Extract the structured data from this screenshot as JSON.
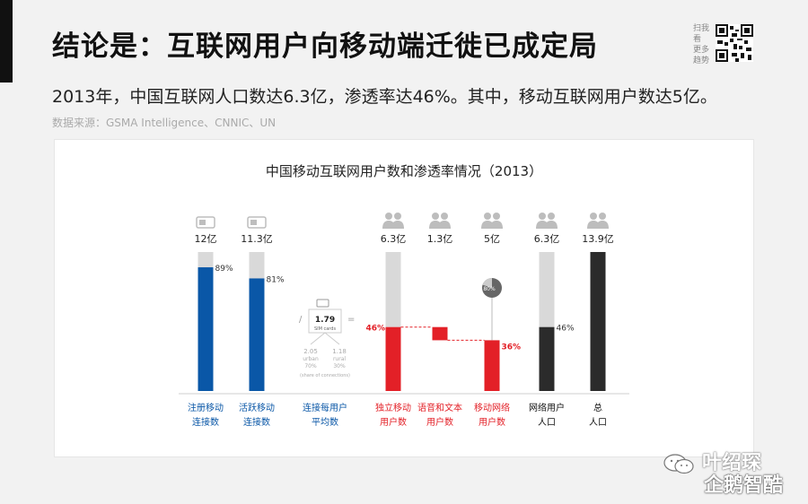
{
  "page": {
    "title": "结论是：互联网用户向移动端迁徙已成定局",
    "subtitle": "2013年，中国互联网人口数达6.3亿，渗透率达46%。其中，移动互联网用户数达5亿。",
    "source": "数据来源：GSMA Intelligence、CNNIC、UN",
    "qr_caption": "扫我 看 更多 趋势"
  },
  "watermark": {
    "author": "叶绍琛",
    "brand": "企鹅智酷"
  },
  "colors": {
    "blue": "#0a57a7",
    "red": "#e32027",
    "dark": "#2b2b2b",
    "grey": "#d9d9d9",
    "icon": "#bdbdbd"
  },
  "chart_data": {
    "type": "bar",
    "title": "中国移动互联网用户数和渗透率情况（2013）",
    "bars": [
      {
        "id": "reg",
        "label": [
          "注册移动",
          "连接数"
        ],
        "label_color": "#0a57a7",
        "value_text": "12亿",
        "value": 12,
        "fill_pct": 89,
        "pct_text": "89%",
        "color": "#0a57a7",
        "icon": "sim-card-icon"
      },
      {
        "id": "act",
        "label": [
          "活跃移动",
          "连接数"
        ],
        "label_color": "#0a57a7",
        "value_text": "11.3亿",
        "value": 11.3,
        "fill_pct": 81,
        "pct_text": "81%",
        "color": "#0a57a7",
        "icon": "sim-card-icon"
      },
      {
        "id": "uniq",
        "label": [
          "独立移动",
          "用户数"
        ],
        "label_color": "#e32027",
        "value_text": "6.3亿",
        "value": 6.3,
        "fill_pct": 46,
        "pct_text": "46%",
        "color": "#e32027",
        "icon": "users-icon"
      },
      {
        "id": "voice",
        "label": [
          "语音和文本",
          "用户数"
        ],
        "label_color": "#e32027",
        "value_text": "1.3亿",
        "value": 1.3,
        "fill_pct": 10,
        "pct_text": "",
        "color": "#e32027",
        "icon": "users-icon"
      },
      {
        "id": "mobnet",
        "label": [
          "移动网络",
          "用户数"
        ],
        "label_color": "#e32027",
        "value_text": "5亿",
        "value": 5,
        "fill_pct": 36,
        "pct_text": "36%",
        "color": "#e32027",
        "icon": "users-icon",
        "pie_text": "80%"
      },
      {
        "id": "net",
        "label": [
          "网络用户",
          "人口"
        ],
        "label_color": "#111111",
        "value_text": "6.3亿",
        "value": 6.3,
        "fill_pct": 46,
        "pct_text": "46%",
        "color": "#2b2b2b",
        "icon": "users-icon"
      },
      {
        "id": "pop",
        "label": [
          "总",
          "人口"
        ],
        "label_color": "#111111",
        "value_text": "13.9亿",
        "value": 13.9,
        "fill_pct": 100,
        "pct_text": "",
        "color": "#2b2b2b",
        "icon": "users-icon"
      }
    ],
    "sim_ratio": {
      "label": [
        "连接每用户",
        "平均数"
      ],
      "value": "1.79",
      "unit": "SIM cards",
      "urban": "2.05",
      "urban_label": "urban",
      "urban_pct": "70%",
      "rural": "1.18",
      "rural_label": "rural",
      "rural_pct": "30%",
      "note": "(share of connections)",
      "ops": [
        "/",
        "="
      ]
    }
  }
}
